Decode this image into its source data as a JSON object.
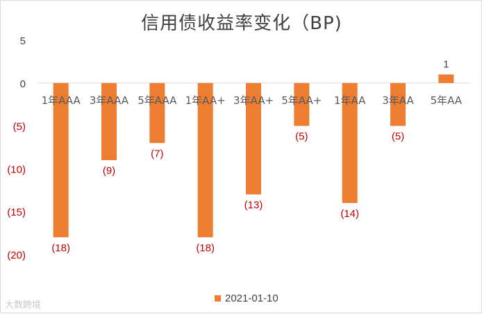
{
  "colors": {
    "bar": "#ed7d31",
    "negative_label": "#c00000",
    "positive_label": "#404040",
    "axis_text": "#404040",
    "grid": "#d9d9d9"
  },
  "watermark": "大数跨境",
  "chart_data": {
    "type": "bar",
    "title": "信用债收益率变化（BP)",
    "xlabel": "",
    "ylabel": "",
    "ylim": [
      -20,
      5
    ],
    "yticks": [
      5,
      0,
      -5,
      -10,
      -15,
      -20
    ],
    "ytick_labels": [
      "5",
      "0",
      "(5)",
      "(10)",
      "(15)",
      "(20)"
    ],
    "grid": false,
    "legend_position": "bottom",
    "categories": [
      "1年AAA",
      "3年AAA",
      "5年AAA",
      "1年AA+",
      "3年AA+",
      "5年AA+",
      "1年AA",
      "3年AA",
      "5年AA"
    ],
    "series": [
      {
        "name": "2021-01-10",
        "values": [
          -18,
          -9,
          -7,
          -18,
          -13,
          -5,
          -14,
          -5,
          1
        ],
        "data_labels": [
          "(18)",
          "(9)",
          "(7)",
          "(18)",
          "(13)",
          "(5)",
          "(14)",
          "(5)",
          "1"
        ]
      }
    ]
  }
}
